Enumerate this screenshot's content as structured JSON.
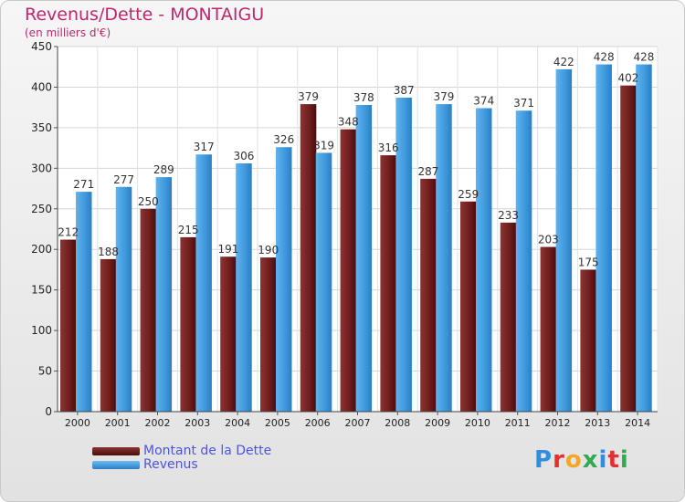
{
  "header": {
    "title": "Revenus/Dette - MONTAIGU",
    "subtitle": "(en milliers d'€)"
  },
  "logo": {
    "text": "Proxiti",
    "letter_colors": [
      "#2f8ee0",
      "#e3302f",
      "#f5a623",
      "#35a853",
      "#2f8ee0",
      "#e3302f",
      "#35a853"
    ]
  },
  "chart_data": {
    "type": "bar",
    "categories": [
      "2000",
      "2001",
      "2002",
      "2003",
      "2004",
      "2005",
      "2006",
      "2007",
      "2008",
      "2009",
      "2010",
      "2011",
      "2012",
      "2013",
      "2014"
    ],
    "series": [
      {
        "name": "Montant de la Dette",
        "color": "#7a2727",
        "values": [
          212,
          188,
          250,
          215,
          191,
          190,
          379,
          348,
          316,
          287,
          259,
          233,
          203,
          175,
          402
        ]
      },
      {
        "name": "Revenus",
        "color": "#4ea6e6",
        "values": [
          271,
          277,
          289,
          317,
          306,
          326,
          319,
          378,
          387,
          379,
          374,
          371,
          422,
          428,
          428
        ]
      }
    ],
    "ylim": [
      0,
      450
    ],
    "yticks": [
      0,
      50,
      100,
      150,
      200,
      250,
      300,
      350,
      400,
      450
    ],
    "grid": true,
    "legend_position": "bottom-left"
  }
}
